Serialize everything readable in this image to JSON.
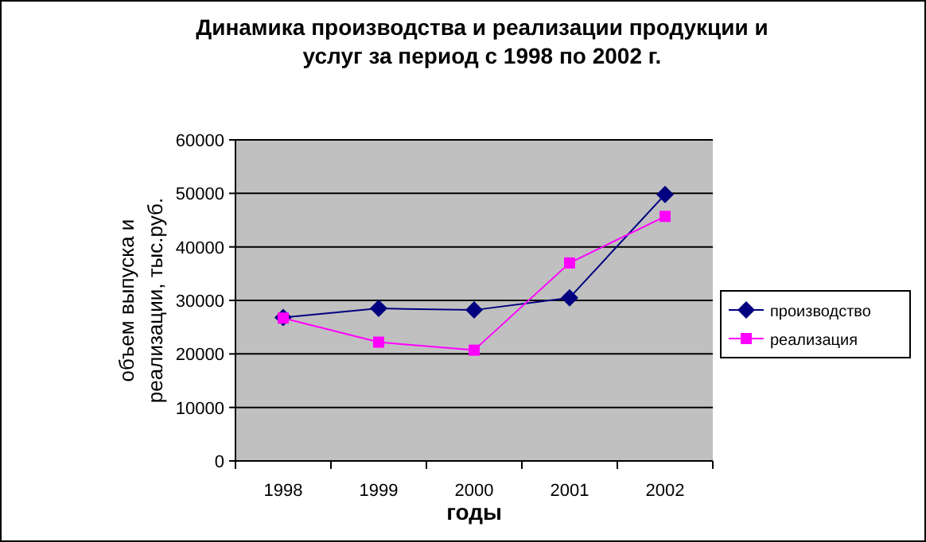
{
  "chart_data": {
    "type": "line",
    "title": "Динамика производства и реализации продукции и услуг за период с 1998 по 2002 г.",
    "xlabel": "годы",
    "ylabel": "объем выпуска и реализации, тыс.руб.",
    "categories": [
      "1998",
      "1999",
      "2000",
      "2001",
      "2002"
    ],
    "series": [
      {
        "name": "производство",
        "color": "#000080",
        "marker": "diamond",
        "values": [
          26800,
          28500,
          28200,
          30500,
          49800
        ]
      },
      {
        "name": "реализация",
        "color": "#ff00ff",
        "marker": "square",
        "values": [
          26700,
          22200,
          20700,
          37000,
          45700
        ]
      }
    ],
    "ylim": [
      0,
      60000
    ],
    "yticks": [
      0,
      10000,
      20000,
      30000,
      40000,
      50000,
      60000
    ],
    "grid": "y",
    "legend": "right"
  }
}
